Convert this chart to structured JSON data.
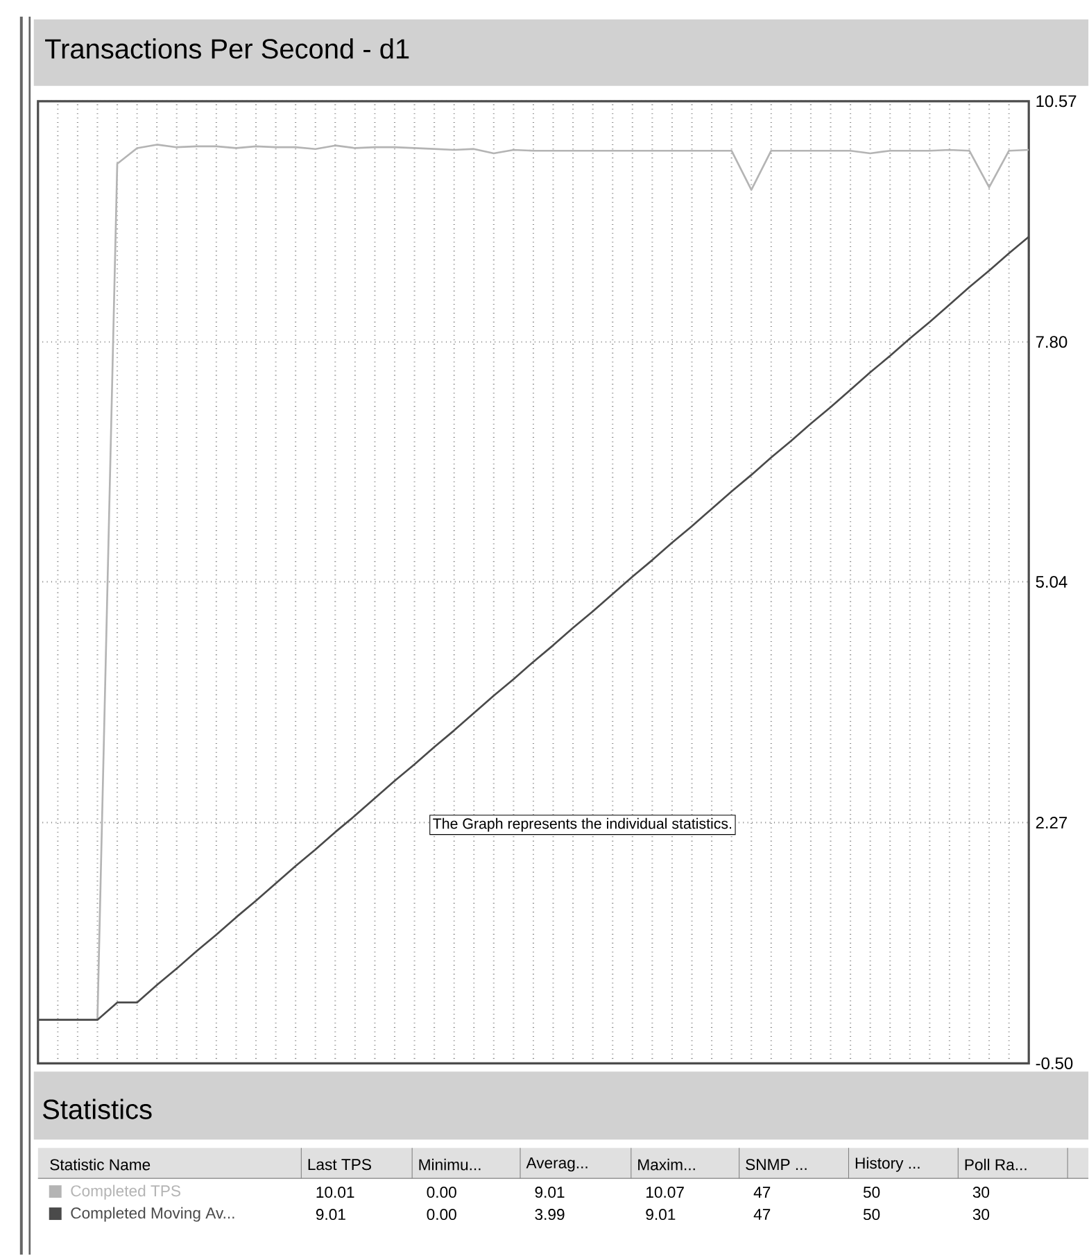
{
  "chart_data": {
    "type": "line",
    "title": "Transactions Per Second - d1",
    "categories": [
      null,
      null,
      null,
      null,
      null,
      null,
      null,
      null,
      null,
      null,
      null,
      null,
      null,
      null,
      null,
      null,
      null,
      null,
      null,
      null,
      null,
      null,
      null,
      null,
      null,
      null,
      null,
      null,
      null,
      null,
      null,
      null,
      null,
      null,
      null,
      null,
      null,
      null,
      null,
      null,
      null,
      null,
      null,
      null,
      null,
      null,
      null,
      null,
      null,
      null,
      null
    ],
    "series": [
      {
        "name": "Completed TPS",
        "color": "#b4b4b4",
        "values": [
          0,
          0,
          0,
          0,
          9.85,
          10.03,
          10.07,
          10.04,
          10.05,
          10.05,
          10.03,
          10.05,
          10.04,
          10.04,
          10.02,
          10.06,
          10.03,
          10.04,
          10.04,
          10.03,
          10.02,
          10.01,
          10.02,
          9.97,
          10.01,
          10.0,
          10.0,
          10.0,
          10.0,
          10.0,
          10.0,
          10.0,
          10.0,
          10.0,
          10.0,
          10.0,
          9.55,
          10.0,
          10.0,
          10.0,
          10.0,
          10.0,
          9.97,
          10.0,
          10.0,
          10.0,
          10.01,
          10.0,
          9.58,
          10.0,
          10.01
        ]
      },
      {
        "name": "Completed Moving Av...",
        "color": "#4a4a4a",
        "values": [
          0,
          0,
          0,
          0,
          0.2,
          0.2,
          0.4,
          0.59,
          0.79,
          0.98,
          1.18,
          1.37,
          1.57,
          1.77,
          1.96,
          2.16,
          2.35,
          2.55,
          2.75,
          2.94,
          3.14,
          3.33,
          3.53,
          3.73,
          3.92,
          4.12,
          4.31,
          4.51,
          4.7,
          4.9,
          5.1,
          5.29,
          5.49,
          5.68,
          5.88,
          6.08,
          6.27,
          6.47,
          6.66,
          6.86,
          7.05,
          7.25,
          7.45,
          7.64,
          7.84,
          8.03,
          8.23,
          8.43,
          8.62,
          8.82,
          9.01
        ]
      }
    ],
    "ylim": [
      -0.5,
      10.57
    ],
    "yticks": [
      {
        "value": -0.5,
        "label": "-0.50"
      },
      2.27,
      5.04,
      {
        "value": 7.8,
        "label": "7.80"
      },
      10.57
    ],
    "grid": true,
    "tick_labels": "y",
    "legend": "bottom",
    "annotations": [
      "Statistics",
      "Statistic Name",
      "Last TPS",
      "Minimu...",
      "Averag...",
      "Maxim...",
      "SNMP ...",
      "History ...",
      "Poll Ra...",
      "10.01",
      "0.00",
      "9.01",
      "10.07",
      "47",
      "50",
      "30",
      "9.01",
      "0.00",
      "3.99",
      "9.01",
      "47",
      "50",
      "30",
      "The Graph represents the individual statistics."
    ]
  }
}
